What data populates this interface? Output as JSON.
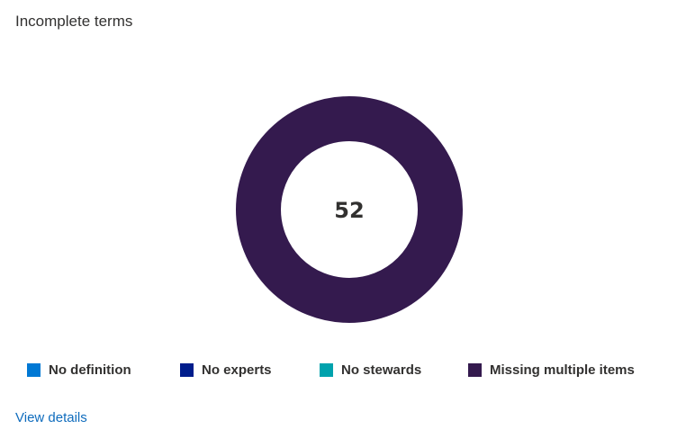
{
  "card": {
    "title": "Incomplete terms",
    "view_details_label": "View details"
  },
  "colors": {
    "no_definition": "#0078d4",
    "no_experts": "#001d8c",
    "no_stewards": "#00a2ad",
    "missing_multiple_items": "#341a4e"
  },
  "chart_data": {
    "type": "pie",
    "style": "donut",
    "title": "Incomplete terms",
    "total_label": "52",
    "categories": [
      "No definition",
      "No experts",
      "No stewards",
      "Missing multiple items"
    ],
    "values": [
      0,
      0,
      0,
      52
    ],
    "colors": [
      "#0078d4",
      "#001d8c",
      "#00a2ad",
      "#341a4e"
    ],
    "legend_position": "bottom"
  }
}
